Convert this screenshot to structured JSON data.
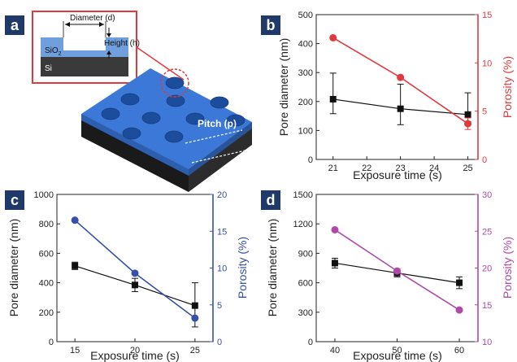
{
  "panels": {
    "a": {
      "letter": "a"
    },
    "b": {
      "letter": "b"
    },
    "c": {
      "letter": "c"
    },
    "d": {
      "letter": "d"
    }
  },
  "schematic": {
    "label_diameter": "Diameter (d)",
    "label_height": "Height (h)",
    "label_sio2": "SiO",
    "label_sio2_sub": "2",
    "label_si": "Si",
    "label_pitch": "Pitch (p)"
  },
  "colors": {
    "badge": "#1f3a68",
    "pore": "#111111",
    "b_porosity": "#e03a3e",
    "c_porosity": "#3550a8",
    "d_porosity": "#b04aa6",
    "substrate_top": "#3b78d8",
    "substrate_side": "#1d1d1d",
    "inset_border": "#e03a3e"
  },
  "chart_data": [
    {
      "panel": "b",
      "type": "line",
      "xlabel": "Exposure time (s)",
      "ylabel_left": "Pore diameter (nm)",
      "ylabel_right": "Porosity (%)",
      "xlim": [
        20.5,
        25.3
      ],
      "xticks": [
        21,
        22,
        23,
        24,
        25
      ],
      "ylim_left": [
        0,
        500
      ],
      "yticks_left": [
        0,
        100,
        200,
        300,
        400,
        500
      ],
      "ylim_right": [
        0,
        15
      ],
      "yticks_right": [
        0,
        5,
        10,
        15
      ],
      "series": [
        {
          "axis": "left",
          "marker": "square",
          "x": [
            21,
            23,
            25
          ],
          "y": [
            208,
            175,
            155
          ],
          "err_low": [
            50,
            55,
            25
          ],
          "err_high": [
            90,
            85,
            75
          ]
        },
        {
          "axis": "right",
          "marker": "circle",
          "x": [
            21,
            23,
            25
          ],
          "y": [
            12.6,
            8.5,
            3.7
          ],
          "err_low": [
            0,
            0,
            0.6
          ],
          "err_high": [
            0,
            0,
            0.6
          ]
        }
      ]
    },
    {
      "panel": "c",
      "type": "line",
      "xlabel": "Exposure time (s)",
      "ylabel_left": "Pore diameter (nm)",
      "ylabel_right": "Porosity (%)",
      "xlim": [
        13.5,
        26.5
      ],
      "xticks": [
        15,
        20,
        25
      ],
      "ylim_left": [
        0,
        1000
      ],
      "yticks_left": [
        0,
        200,
        400,
        600,
        800,
        1000
      ],
      "ylim_right": [
        0,
        20
      ],
      "yticks_right": [
        0,
        5,
        10,
        15,
        20
      ],
      "series": [
        {
          "axis": "left",
          "marker": "square",
          "x": [
            15,
            20,
            25
          ],
          "y": [
            515,
            385,
            245
          ],
          "err_low": [
            25,
            45,
            145
          ],
          "err_high": [
            25,
            45,
            155
          ]
        },
        {
          "axis": "right",
          "marker": "circle",
          "x": [
            15,
            20,
            25
          ],
          "y": [
            16.5,
            9.3,
            3.2
          ],
          "err_low": [
            0,
            0,
            0
          ],
          "err_high": [
            0,
            0,
            0
          ]
        }
      ]
    },
    {
      "panel": "d",
      "type": "line",
      "xlabel": "Exposure time (s)",
      "ylabel_left": "Pore diameter (nm)",
      "ylabel_right": "Porosity (%)",
      "xlim": [
        37,
        63
      ],
      "xticks": [
        40,
        50,
        60
      ],
      "ylim_left": [
        0,
        1500
      ],
      "yticks_left": [
        0,
        300,
        600,
        900,
        1200,
        1500
      ],
      "ylim_right": [
        10,
        30
      ],
      "yticks_right": [
        10,
        15,
        20,
        25,
        30
      ],
      "series": [
        {
          "axis": "left",
          "marker": "square",
          "x": [
            40,
            50,
            60
          ],
          "y": [
            800,
            700,
            600
          ],
          "err_low": [
            50,
            40,
            60
          ],
          "err_high": [
            50,
            40,
            60
          ]
        },
        {
          "axis": "right",
          "marker": "circle",
          "x": [
            40,
            50,
            60
          ],
          "y": [
            25.2,
            19.6,
            14.3
          ],
          "err_low": [
            0,
            0,
            0
          ],
          "err_high": [
            0,
            0,
            0
          ]
        }
      ]
    }
  ]
}
